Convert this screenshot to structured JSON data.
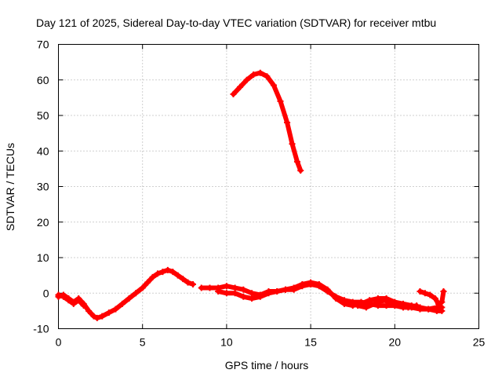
{
  "chart_data": {
    "type": "scatter",
    "title": "Day 121 of 2025, Sidereal Day-to-day VTEC variation (SDTVAR) for receiver mtbu",
    "xlabel": "GPS time / hours",
    "ylabel": "SDTVAR / TECUs",
    "xlim": [
      0,
      25
    ],
    "ylim": [
      -10,
      70
    ],
    "x_ticks": [
      0,
      5,
      10,
      15,
      20,
      25
    ],
    "y_ticks": [
      -10,
      0,
      10,
      20,
      30,
      40,
      50,
      60,
      70
    ],
    "grid": true,
    "series": [
      {
        "name": "SDTVAR",
        "color": "#ff0000",
        "segments": [
          [
            [
              0.0,
              -1.0
            ],
            [
              0.3,
              -0.5
            ],
            [
              0.6,
              -1.5
            ],
            [
              0.9,
              -2.5
            ],
            [
              1.2,
              -1.5
            ],
            [
              1.5,
              -3.0
            ],
            [
              1.8,
              -5.0
            ],
            [
              2.1,
              -6.5
            ],
            [
              2.3,
              -7.0
            ],
            [
              2.6,
              -6.5
            ],
            [
              3.0,
              -5.5
            ],
            [
              3.4,
              -4.5
            ],
            [
              3.8,
              -3.0
            ],
            [
              4.2,
              -1.5
            ],
            [
              4.6,
              0.0
            ],
            [
              5.0,
              1.5
            ],
            [
              5.3,
              3.0
            ],
            [
              5.6,
              4.5
            ],
            [
              5.9,
              5.5
            ],
            [
              6.2,
              6.0
            ],
            [
              6.5,
              6.5
            ],
            [
              6.8,
              6.0
            ],
            [
              7.1,
              5.0
            ],
            [
              7.4,
              4.0
            ],
            [
              7.7,
              3.0
            ],
            [
              8.0,
              2.5
            ]
          ],
          [
            [
              0.0,
              -0.5
            ],
            [
              0.3,
              -1.0
            ],
            [
              0.6,
              -2.0
            ],
            [
              0.9,
              -3.0
            ],
            [
              1.2,
              -2.0
            ],
            [
              1.5,
              -3.5
            ]
          ],
          [
            [
              8.5,
              1.5
            ],
            [
              9.0,
              1.5
            ],
            [
              9.5,
              1.5
            ],
            [
              10.0,
              2.0
            ],
            [
              10.5,
              1.5
            ],
            [
              11.0,
              1.0
            ],
            [
              11.5,
              0.0
            ],
            [
              12.0,
              -0.5
            ],
            [
              12.5,
              0.5
            ],
            [
              13.0,
              0.5
            ],
            [
              13.5,
              1.0
            ],
            [
              14.0,
              1.0
            ],
            [
              14.5,
              2.0
            ],
            [
              15.0,
              2.5
            ],
            [
              15.5,
              2.0
            ],
            [
              16.0,
              0.5
            ],
            [
              16.5,
              -1.0
            ],
            [
              17.0,
              -2.0
            ],
            [
              17.5,
              -2.5
            ],
            [
              18.0,
              -2.5
            ],
            [
              18.5,
              -3.0
            ],
            [
              19.0,
              -3.5
            ],
            [
              19.5,
              -3.5
            ],
            [
              20.0,
              -3.5
            ],
            [
              20.5,
              -4.0
            ],
            [
              21.0,
              -4.0
            ],
            [
              21.5,
              -4.5
            ],
            [
              22.0,
              -4.5
            ],
            [
              22.5,
              -4.0
            ],
            [
              22.8,
              -4.0
            ]
          ],
          [
            [
              9.5,
              0.5
            ],
            [
              10.0,
              0.0
            ],
            [
              10.5,
              0.0
            ],
            [
              11.0,
              -1.0
            ],
            [
              11.5,
              -1.5
            ],
            [
              12.0,
              -1.0
            ],
            [
              12.5,
              0.0
            ],
            [
              13.0,
              0.5
            ],
            [
              13.5,
              1.0
            ],
            [
              14.0,
              1.5
            ],
            [
              14.5,
              2.5
            ],
            [
              15.0,
              3.0
            ],
            [
              15.5,
              2.5
            ],
            [
              16.0,
              1.0
            ],
            [
              16.5,
              -1.5
            ],
            [
              17.0,
              -3.0
            ],
            [
              17.5,
              -3.5
            ],
            [
              18.0,
              -3.0
            ],
            [
              18.5,
              -2.0
            ],
            [
              19.0,
              -1.5
            ],
            [
              19.5,
              -1.5
            ],
            [
              20.0,
              -2.5
            ],
            [
              20.5,
              -3.0
            ],
            [
              21.0,
              -3.5
            ],
            [
              21.5,
              -4.0
            ],
            [
              22.0,
              -4.5
            ],
            [
              22.5,
              -5.0
            ],
            [
              22.8,
              -5.0
            ]
          ],
          [
            [
              16.8,
              -2.0
            ],
            [
              17.3,
              -2.5
            ],
            [
              17.8,
              -3.5
            ],
            [
              18.3,
              -4.0
            ],
            [
              18.8,
              -3.0
            ],
            [
              19.3,
              -2.0
            ],
            [
              19.8,
              -2.5
            ],
            [
              20.3,
              -3.5
            ],
            [
              20.8,
              -4.0
            ],
            [
              21.3,
              -3.5
            ]
          ],
          [
            [
              21.5,
              0.5
            ],
            [
              21.8,
              0.0
            ],
            [
              22.1,
              -0.5
            ],
            [
              22.4,
              -1.5
            ],
            [
              22.6,
              -3.0
            ],
            [
              22.8,
              -2.5
            ],
            [
              22.9,
              0.5
            ]
          ],
          [
            [
              10.4,
              56.0
            ],
            [
              10.8,
              58.0
            ],
            [
              11.2,
              60.0
            ],
            [
              11.6,
              61.5
            ],
            [
              12.0,
              62.0
            ],
            [
              12.4,
              61.0
            ],
            [
              12.8,
              58.5
            ],
            [
              13.2,
              54.0
            ],
            [
              13.6,
              48.0
            ],
            [
              13.9,
              42.0
            ],
            [
              14.2,
              37.0
            ],
            [
              14.4,
              34.5
            ]
          ]
        ]
      }
    ]
  }
}
